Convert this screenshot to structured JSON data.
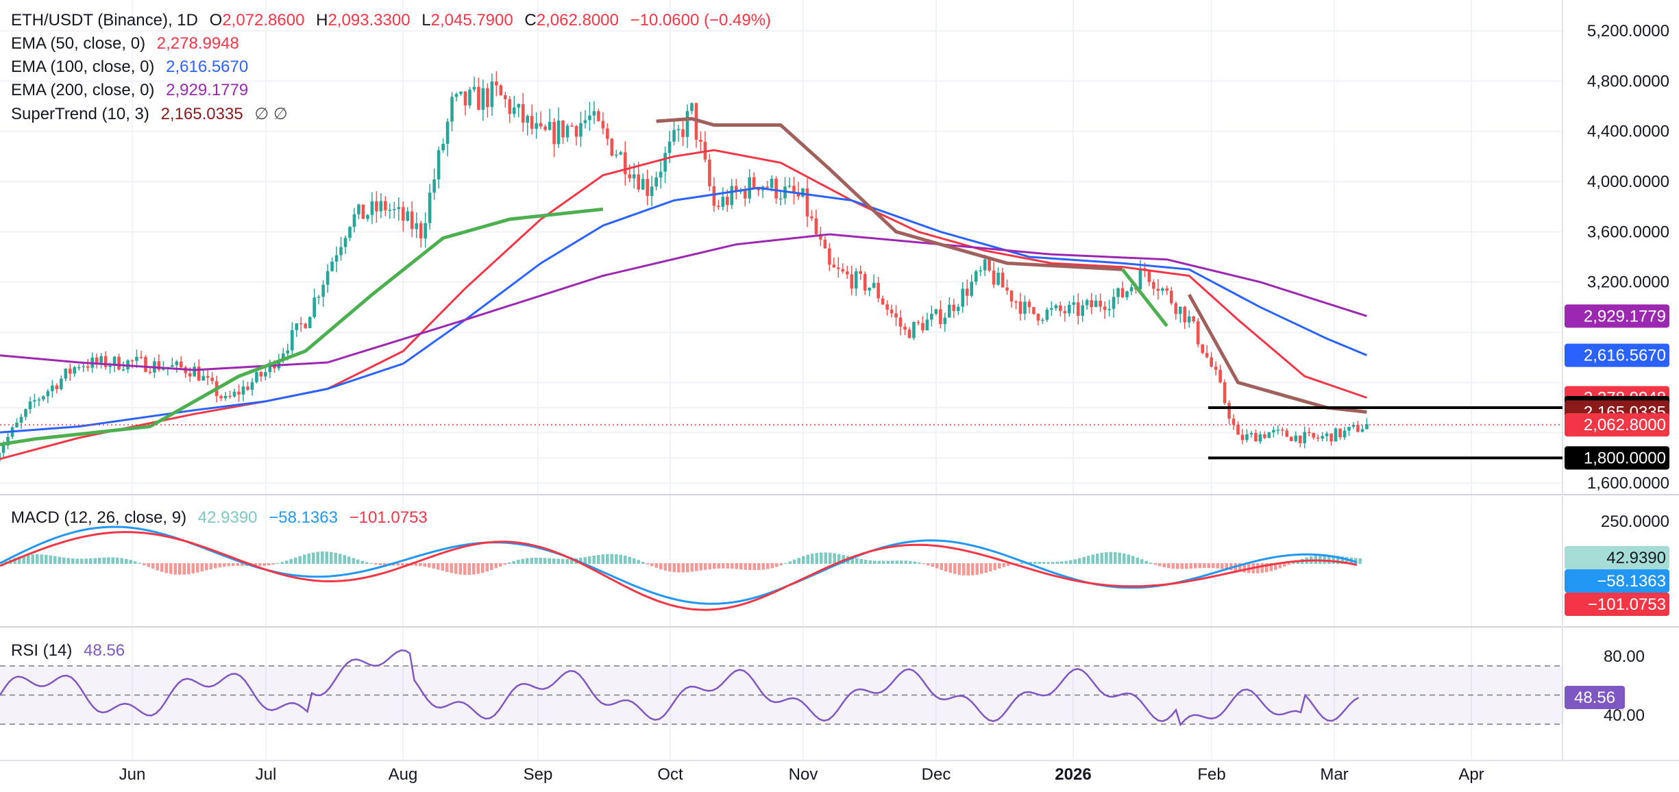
{
  "header": {
    "symbol": "ETH/USDT (Binance), 1D",
    "open_label": "O",
    "open": "2,072.8600",
    "high_label": "H",
    "high": "2,093.3300",
    "low_label": "L",
    "low": "2,045.7900",
    "close_label": "C",
    "close": "2,062.8000",
    "change": "−10.0600 (−0.49%)"
  },
  "indicators": {
    "ema50": {
      "label": "EMA (50, close, 0)",
      "value": "2,278.9948",
      "color": "#f23645"
    },
    "ema100": {
      "label": "EMA (100, close, 0)",
      "value": "2,616.5670",
      "color": "#2962ff"
    },
    "ema200": {
      "label": "EMA (200, close, 0)",
      "value": "2,929.1779",
      "color": "#9c27b0"
    },
    "supertrend": {
      "label": "SuperTrend (10, 3)",
      "value": "2,165.0335",
      "icons": "∅ ∅",
      "up_color": "#4caf50",
      "down_color": "#a1605c"
    },
    "macd": {
      "label": "MACD (12, 26, close, 9)",
      "hist": "42.9390",
      "macd": "−58.1363",
      "signal": "−101.0753",
      "hist_color": "#26a69a",
      "macd_color": "#2196f3",
      "signal_color": "#f23645"
    },
    "rsi": {
      "label": "RSI (14)",
      "value": "48.56",
      "color": "#7e57c2"
    }
  },
  "price_axis": {
    "ticks": [
      "5,200.0000",
      "4,800.0000",
      "4,400.0000",
      "4,000.0000",
      "3,600.0000",
      "3,200.0000",
      "1,600.0000"
    ],
    "tick_values": [
      5200,
      4800,
      4400,
      4000,
      3600,
      3200,
      1600
    ],
    "tags": [
      {
        "text": "2,929.1779",
        "value": 2929.18,
        "color": "#9c27b0"
      },
      {
        "text": "2,616.5670",
        "value": 2616.57,
        "color": "#2962ff"
      },
      {
        "text": "2,278.9948",
        "value": 2278.99,
        "color": "#f23645"
      },
      {
        "text": "2,200.0000",
        "value": 2200,
        "color": "#000000"
      },
      {
        "text": "2,165.0335",
        "value": 2165.03,
        "color": "#8b1a1a"
      },
      {
        "text": "2,062.8000",
        "value": 2062.8,
        "color": "#f23645"
      },
      {
        "text": "1,800.0000",
        "value": 1800,
        "color": "#000000"
      }
    ]
  },
  "macd_axis": {
    "ticks": [
      "250.0000"
    ],
    "tags": [
      {
        "text": "42.9390",
        "color": "#a5dcd6",
        "dark": true
      },
      {
        "text": "−58.1363",
        "color": "#2196f3"
      },
      {
        "text": "−101.0753",
        "color": "#f23645"
      }
    ]
  },
  "rsi_axis": {
    "ticks": [
      "80.00",
      "40.00"
    ],
    "tag": {
      "text": "48.56",
      "color": "#7e57c2"
    }
  },
  "time_axis": {
    "labels": [
      "Jun",
      "Jul",
      "Aug",
      "Sep",
      "Oct",
      "Nov",
      "Dec",
      "2026",
      "Feb",
      "Mar",
      "Apr"
    ],
    "bold": "2026"
  },
  "chart_data": {
    "type": "candlestick",
    "title": "ETH/USDT (Binance), 1D",
    "ylim": [
      1500,
      5300
    ],
    "range_levels": [
      2200,
      1800
    ],
    "last_close": 2062.8,
    "series": [
      {
        "name": "EMA (50, close, 0)",
        "x": [
          "2025-05-01",
          "2025-05-20",
          "2025-06-15",
          "2025-07-01",
          "2025-07-15",
          "2025-08-01",
          "2025-08-15",
          "2025-09-01",
          "2025-09-15",
          "2025-10-01",
          "2025-10-10",
          "2025-10-25",
          "2025-11-10",
          "2025-11-25",
          "2025-12-10",
          "2025-12-25",
          "2026-01-10",
          "2026-01-25",
          "2026-02-05",
          "2026-02-20",
          "2026-03-06"
        ],
        "values": [
          1780,
          1960,
          2150,
          2250,
          2350,
          2650,
          3150,
          3700,
          4050,
          4200,
          4250,
          4150,
          3850,
          3600,
          3450,
          3350,
          3320,
          3250,
          2900,
          2450,
          2279
        ]
      },
      {
        "name": "EMA (100, close, 0)",
        "x": [
          "2025-05-01",
          "2025-05-20",
          "2025-06-15",
          "2025-07-01",
          "2025-07-15",
          "2025-08-01",
          "2025-08-15",
          "2025-09-01",
          "2025-09-15",
          "2025-10-01",
          "2025-10-20",
          "2025-11-10",
          "2025-11-30",
          "2025-12-20",
          "2026-01-10",
          "2026-01-25",
          "2026-02-10",
          "2026-02-25",
          "2026-03-06"
        ],
        "values": [
          2000,
          2050,
          2180,
          2250,
          2350,
          2550,
          2900,
          3350,
          3650,
          3850,
          3950,
          3850,
          3600,
          3400,
          3350,
          3300,
          3000,
          2750,
          2617
        ]
      },
      {
        "name": "EMA (200, close, 0)",
        "x": [
          "2025-05-01",
          "2025-05-20",
          "2025-06-15",
          "2025-07-15",
          "2025-08-15",
          "2025-09-15",
          "2025-10-15",
          "2025-11-05",
          "2025-11-30",
          "2025-12-25",
          "2026-01-20",
          "2026-02-10",
          "2026-03-06"
        ],
        "values": [
          2620,
          2560,
          2500,
          2560,
          2900,
          3250,
          3500,
          3580,
          3500,
          3420,
          3380,
          3200,
          2929
        ]
      },
      {
        "name": "SuperTrend (10, 3)",
        "x": [
          "2025-05-01",
          "2025-05-10",
          "2025-06-05",
          "2025-06-25",
          "2025-07-10",
          "2025-07-25",
          "2025-08-10",
          "2025-08-25",
          "2025-09-15",
          "2025-09-27",
          "2025-10-05",
          "2025-10-10",
          "2025-10-25",
          "2025-11-05",
          "2025-11-20",
          "2025-12-15",
          "2026-01-10",
          "2026-01-20",
          "2026-01-25",
          "2026-02-05",
          "2026-02-25",
          "2026-03-06"
        ],
        "values": [
          1900,
          1950,
          2050,
          2450,
          2650,
          3100,
          3550,
          3700,
          3780,
          4480,
          4500,
          4450,
          4450,
          4100,
          3600,
          3350,
          3300,
          2850,
          3100,
          2400,
          2200,
          2165
        ]
      }
    ],
    "candles_note": "daily OHLC candles from May 2025 to early March 2026"
  }
}
